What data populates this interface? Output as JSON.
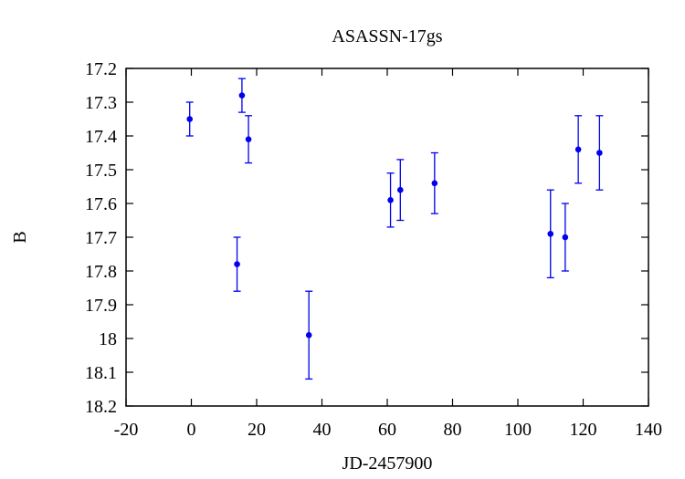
{
  "chart_data": {
    "type": "scatter",
    "title": "ASASSN-17gs",
    "xlabel": "JD-2457900",
    "ylabel": "B",
    "xlim": [
      -20,
      140
    ],
    "ylim": [
      17.2,
      18.2
    ],
    "y_inverted": true,
    "grid": false,
    "x_ticks": [
      -20,
      0,
      20,
      40,
      60,
      80,
      100,
      120,
      140
    ],
    "x_tick_labels": [
      "-20",
      "0",
      "20",
      "40",
      "60",
      "80",
      "100",
      "120",
      "140"
    ],
    "y_ticks": [
      17.2,
      17.3,
      17.4,
      17.5,
      17.6,
      17.7,
      17.8,
      17.9,
      18.0,
      18.1,
      18.2
    ],
    "y_tick_labels": [
      "17.2",
      "17.3",
      "17.4",
      "17.5",
      "17.6",
      "17.7",
      "17.8",
      "17.9",
      "18",
      "18.1",
      "18.2"
    ],
    "series": [
      {
        "color": "#0000ee",
        "points": [
          {
            "x": -0.5,
            "y": 17.35,
            "err": 0.05
          },
          {
            "x": 14.0,
            "y": 17.78,
            "err": 0.08
          },
          {
            "x": 15.5,
            "y": 17.28,
            "err": 0.05
          },
          {
            "x": 17.5,
            "y": 17.41,
            "err": 0.07
          },
          {
            "x": 36.0,
            "y": 17.99,
            "err": 0.13
          },
          {
            "x": 61.0,
            "y": 17.59,
            "err": 0.08
          },
          {
            "x": 64.0,
            "y": 17.56,
            "err": 0.09
          },
          {
            "x": 74.5,
            "y": 17.54,
            "err": 0.09
          },
          {
            "x": 110.0,
            "y": 17.69,
            "err": 0.13
          },
          {
            "x": 114.5,
            "y": 17.7,
            "err": 0.1
          },
          {
            "x": 118.5,
            "y": 17.44,
            "err": 0.1
          },
          {
            "x": 125.0,
            "y": 17.45,
            "err": 0.11
          }
        ]
      }
    ]
  }
}
